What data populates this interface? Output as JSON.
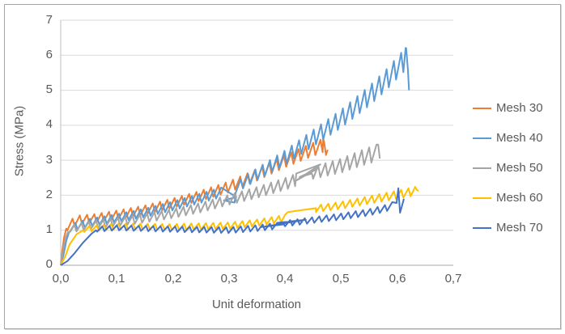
{
  "figure": {
    "background": "#FFFFFF",
    "border_color": "#A6A6A6"
  },
  "chart_data": {
    "type": "line",
    "xlabel": "Unit deformation",
    "ylabel": "Stress (MPa)",
    "xlim": [
      0,
      0.7
    ],
    "ylim": [
      0,
      7
    ],
    "x_tick_labels": [
      "0,0",
      "0,1",
      "0,2",
      "0,3",
      "0,4",
      "0,5",
      "0,6",
      "0,7"
    ],
    "y_tick_labels": [
      "0",
      "1",
      "2",
      "3",
      "4",
      "5",
      "6",
      "7"
    ],
    "grid": "horizontal",
    "gridline_color": "#D9D9D9",
    "axis_line_color": "#A6A6A6",
    "legend_position": "right",
    "decimal_separator": ",",
    "series": [
      {
        "name": "Mesh 30",
        "color": "#ED7D31",
        "summary": "rises fast to ~1.1 MPa by 0.012 strain, sawtooth climb to peak ~3.5 MPa, ends near x=0.48",
        "segments": [
          {
            "pts": [
              [
                0,
                0
              ],
              [
                0.003,
                0.45
              ],
              [
                0.006,
                0.8
              ],
              [
                0.01,
                1.05
              ]
            ]
          },
          {
            "x0": 0.012,
            "x1": 0.468,
            "period": 0.013,
            "trend": [
              [
                0.012,
                1.1
              ],
              [
                0.03,
                1.28
              ],
              [
                0.06,
                1.32
              ],
              [
                0.1,
                1.42
              ],
              [
                0.15,
                1.56
              ],
              [
                0.2,
                1.76
              ],
              [
                0.25,
                1.97
              ],
              [
                0.3,
                2.22
              ],
              [
                0.35,
                2.56
              ],
              [
                0.4,
                2.95
              ],
              [
                0.44,
                3.22
              ],
              [
                0.468,
                3.4
              ]
            ],
            "amp": [
              [
                0.012,
                0.14
              ],
              [
                0.2,
                0.15
              ],
              [
                0.35,
                0.19
              ],
              [
                0.468,
                0.22
              ]
            ]
          },
          {
            "pts": [
              [
                0.47,
                3.5
              ],
              [
                0.473,
                3.15
              ],
              [
                0.476,
                3.3
              ]
            ]
          }
        ]
      },
      {
        "name": "Mesh 40",
        "color": "#5B9BD5",
        "summary": "sawtooth climb from ~1 MPa, small backward loop near x=0.30, rises to peak ~6.2 MPa at x=0.615 then sharp drop to ~5 MPa",
        "segments": [
          {
            "pts": [
              [
                0,
                0
              ],
              [
                0.005,
                0.3
              ],
              [
                0.01,
                0.7
              ],
              [
                0.015,
                0.95
              ]
            ]
          },
          {
            "x0": 0.017,
            "x1": 0.29,
            "period": 0.013,
            "trend": [
              [
                0.017,
                1.05
              ],
              [
                0.05,
                1.2
              ],
              [
                0.1,
                1.33
              ],
              [
                0.15,
                1.48
              ],
              [
                0.2,
                1.68
              ],
              [
                0.25,
                1.9
              ],
              [
                0.29,
                2.08
              ]
            ],
            "amp": [
              [
                0.017,
                0.12
              ],
              [
                0.29,
                0.16
              ]
            ]
          },
          {
            "pts": [
              [
                0.313,
                1.95
              ],
              [
                0.291,
                1.85
              ],
              [
                0.31,
                1.79
              ]
            ]
          },
          {
            "x0": 0.312,
            "x1": 0.615,
            "period": 0.013,
            "trend": [
              [
                0.312,
                2.2
              ],
              [
                0.35,
                2.58
              ],
              [
                0.4,
                3.05
              ],
              [
                0.45,
                3.6
              ],
              [
                0.5,
                4.15
              ],
              [
                0.55,
                4.8
              ],
              [
                0.58,
                5.25
              ],
              [
                0.6,
                5.6
              ],
              [
                0.615,
                5.85
              ]
            ],
            "amp": [
              [
                0.312,
                0.17
              ],
              [
                0.45,
                0.27
              ],
              [
                0.55,
                0.32
              ],
              [
                0.615,
                0.36
              ]
            ]
          },
          {
            "pts": [
              [
                0.616,
                6.2
              ],
              [
                0.619,
                5.6
              ],
              [
                0.621,
                5.0
              ]
            ]
          }
        ]
      },
      {
        "name": "Mesh 50",
        "color": "#A5A5A5",
        "summary": "sawtooth climb to ~2.4 MPa at x=0.42, back-and-forth zigzag artifact to ~2.9, resumes to peak ~3.45 MPa, ends x=0.57",
        "segments": [
          {
            "pts": [
              [
                0,
                0
              ],
              [
                0.004,
                0.4
              ],
              [
                0.008,
                0.75
              ],
              [
                0.013,
                0.95
              ]
            ]
          },
          {
            "x0": 0.015,
            "x1": 0.42,
            "period": 0.013,
            "trend": [
              [
                0.015,
                1.02
              ],
              [
                0.05,
                1.12
              ],
              [
                0.1,
                1.22
              ],
              [
                0.15,
                1.33
              ],
              [
                0.2,
                1.46
              ],
              [
                0.25,
                1.63
              ],
              [
                0.3,
                1.85
              ],
              [
                0.35,
                2.06
              ],
              [
                0.4,
                2.3
              ],
              [
                0.42,
                2.42
              ]
            ],
            "amp": [
              [
                0.015,
                0.12
              ],
              [
                0.3,
                0.16
              ],
              [
                0.42,
                0.2
              ]
            ]
          },
          {
            "pts": [
              [
                0.463,
                2.88
              ],
              [
                0.42,
                2.42
              ],
              [
                0.458,
                2.76
              ],
              [
                0.426,
                2.52
              ],
              [
                0.448,
                2.62
              ]
            ]
          },
          {
            "x0": 0.45,
            "x1": 0.563,
            "period": 0.013,
            "trend": [
              [
                0.45,
                2.62
              ],
              [
                0.5,
                2.82
              ],
              [
                0.53,
                3.0
              ],
              [
                0.563,
                3.18
              ]
            ],
            "amp": [
              [
                0.45,
                0.2
              ],
              [
                0.563,
                0.27
              ]
            ]
          },
          {
            "pts": [
              [
                0.566,
                3.45
              ],
              [
                0.569,
                3.05
              ]
            ]
          }
        ]
      },
      {
        "name": "Mesh 60",
        "color": "#FFC000",
        "summary": "slow rise to ~1 MPa by x=0.04, nearly flat sawtooth ~1.1 MPa until x=0.35, gentle climb to ~2.15 MPa at x=0.64",
        "segments": [
          {
            "pts": [
              [
                0,
                0
              ],
              [
                0.008,
                0.25
              ],
              [
                0.016,
                0.6
              ],
              [
                0.028,
                0.88
              ],
              [
                0.04,
                1.0
              ]
            ]
          },
          {
            "x0": 0.042,
            "x1": 0.4,
            "period": 0.013,
            "trend": [
              [
                0.042,
                1.02
              ],
              [
                0.1,
                1.1
              ],
              [
                0.2,
                1.08
              ],
              [
                0.3,
                1.12
              ],
              [
                0.35,
                1.2
              ],
              [
                0.4,
                1.33
              ]
            ],
            "amp": [
              [
                0.042,
                0.09
              ],
              [
                0.4,
                0.11
              ]
            ]
          },
          {
            "pts": [
              [
                0.405,
                1.52
              ],
              [
                0.455,
                1.63
              ]
            ]
          },
          {
            "x0": 0.455,
            "x1": 0.632,
            "period": 0.013,
            "trend": [
              [
                0.455,
                1.6
              ],
              [
                0.5,
                1.7
              ],
              [
                0.55,
                1.85
              ],
              [
                0.6,
                2.0
              ],
              [
                0.632,
                2.1
              ]
            ],
            "amp": [
              [
                0.455,
                0.11
              ],
              [
                0.632,
                0.14
              ]
            ]
          },
          {
            "pts": [
              [
                0.635,
                2.15
              ],
              [
                0.638,
                2.12
              ]
            ]
          }
        ]
      },
      {
        "name": "Mesh 70",
        "color": "#4472C4",
        "summary": "slowest initial rise reaching ~1 MPa at x=0.065, flat sawtooth ~1 MPa, straight crossing segment near x=0.36-0.44, climbs to ~1.7, sharp spike to ~2.2 MPa at x=0.60, ends ~1.9",
        "segments": [
          {
            "pts": [
              [
                0,
                0
              ],
              [
                0.012,
                0.12
              ],
              [
                0.025,
                0.35
              ],
              [
                0.04,
                0.65
              ],
              [
                0.055,
                0.9
              ],
              [
                0.063,
                1.0
              ]
            ]
          },
          {
            "x0": 0.065,
            "x1": 0.39,
            "period": 0.013,
            "trend": [
              [
                0.065,
                1.02
              ],
              [
                0.1,
                1.06
              ],
              [
                0.2,
                1.02
              ],
              [
                0.3,
                0.99
              ],
              [
                0.35,
                1.05
              ],
              [
                0.39,
                1.12
              ]
            ],
            "amp": [
              [
                0.065,
                0.08
              ],
              [
                0.39,
                0.1
              ]
            ]
          },
          {
            "pts": [
              [
                0.437,
                1.3
              ],
              [
                0.358,
                1.09
              ],
              [
                0.398,
                1.17
              ]
            ]
          },
          {
            "x0": 0.4,
            "x1": 0.595,
            "period": 0.013,
            "trend": [
              [
                0.4,
                1.18
              ],
              [
                0.45,
                1.28
              ],
              [
                0.5,
                1.38
              ],
              [
                0.55,
                1.5
              ],
              [
                0.58,
                1.62
              ],
              [
                0.595,
                1.72
              ]
            ],
            "amp": [
              [
                0.4,
                0.09
              ],
              [
                0.595,
                0.11
              ]
            ]
          },
          {
            "pts": [
              [
                0.599,
                1.78
              ],
              [
                0.602,
                2.2
              ],
              [
                0.605,
                1.5
              ],
              [
                0.609,
                1.72
              ],
              [
                0.612,
                1.9
              ]
            ]
          }
        ]
      }
    ]
  }
}
